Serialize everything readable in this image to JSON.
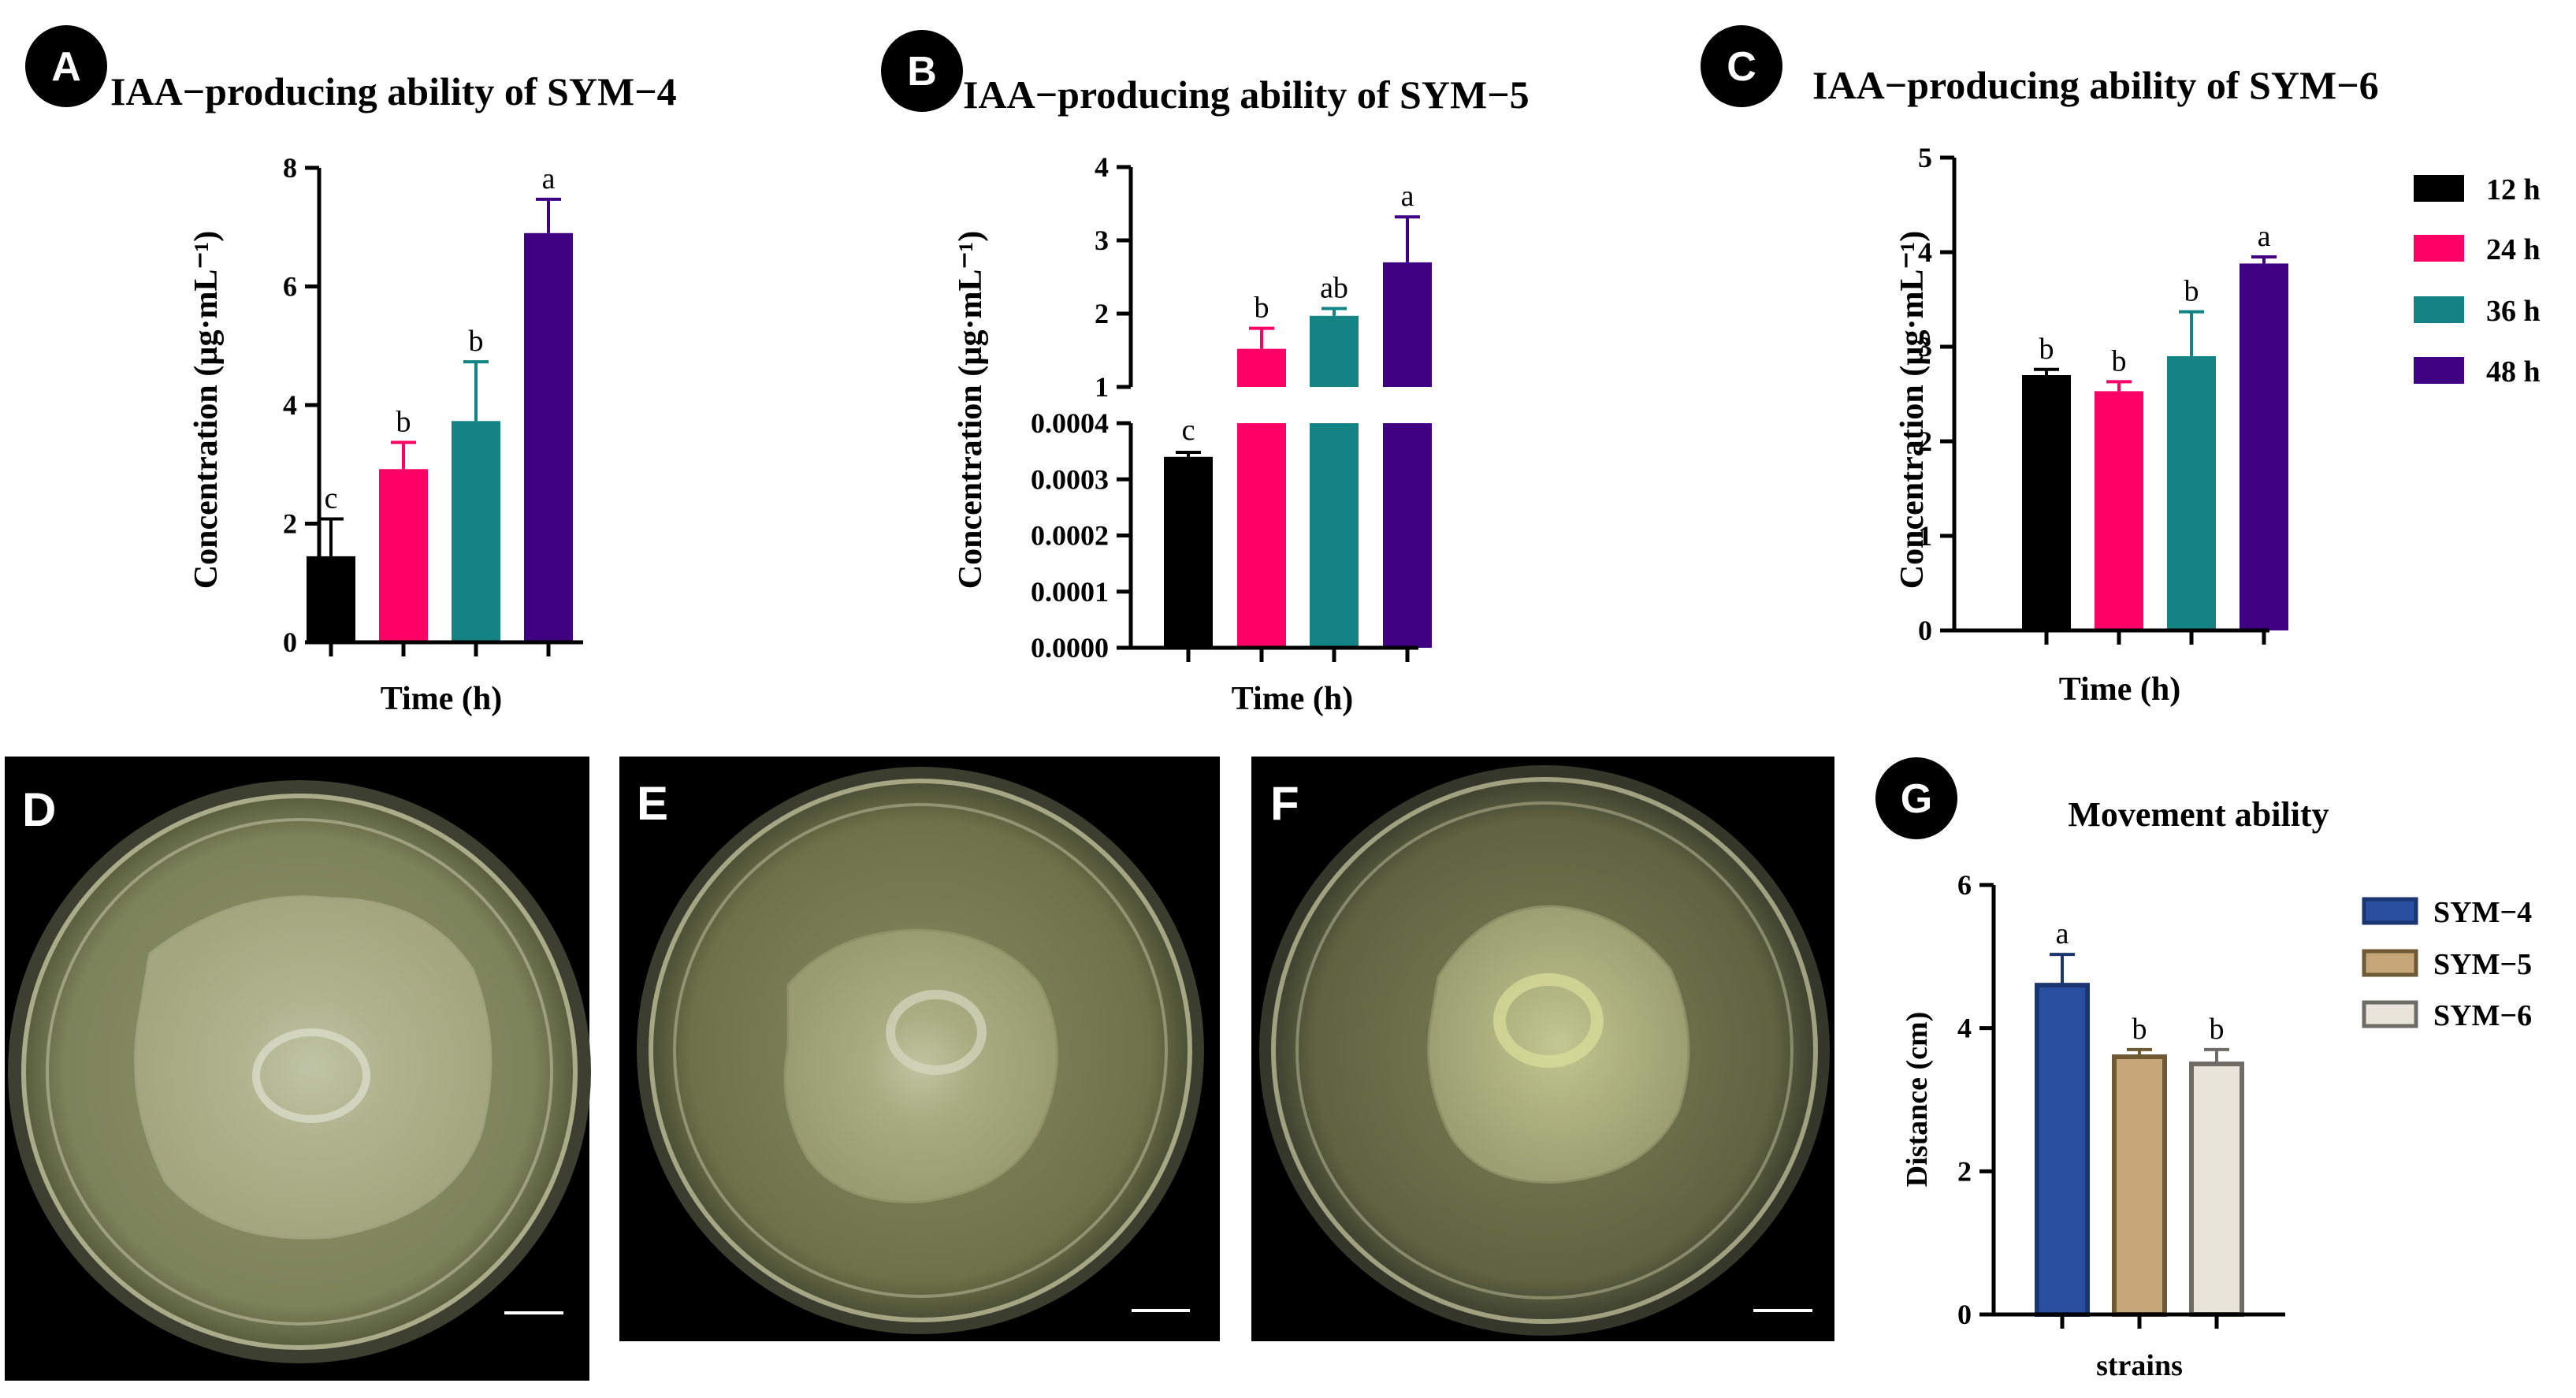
{
  "panel_labels": {
    "A": "A",
    "B": "B",
    "C": "C",
    "D": "D",
    "E": "E",
    "F": "F",
    "G": "G"
  },
  "colors": {
    "h12": "#000000",
    "h24": "#ff0066",
    "h36": "#138384",
    "h48": "#3f0082",
    "sym4": "#2950a0",
    "sym5": "#c4a679",
    "sym6": "#e8e4da"
  },
  "legend_time": [
    "12 h",
    "24 h",
    "36 h",
    "48 h"
  ],
  "legend_strain": [
    "SYM−4",
    "SYM−5",
    "SYM−6"
  ],
  "chart_data": [
    {
      "id": "A",
      "type": "bar",
      "title": "IAA−producing ability of SYM−4",
      "xlabel": "Time (h)",
      "ylabel": "Concentration (µg·mL⁻¹)",
      "ylim": [
        0,
        8
      ],
      "yticks": [
        "0",
        "2",
        "4",
        "6",
        "8"
      ],
      "categories": [
        "12 h",
        "24 h",
        "36 h",
        "48 h"
      ],
      "values": [
        1.45,
        2.92,
        3.73,
        6.9
      ],
      "errors": [
        0.63,
        0.45,
        1.0,
        0.57
      ],
      "letters": [
        "c",
        "b",
        "b",
        "a"
      ]
    },
    {
      "id": "B",
      "type": "bar",
      "title": "IAA−producing ability of  SYM−5",
      "xlabel": "Time (h)",
      "ylabel": "Concentration (µg·mL⁻¹)",
      "ylim_lower": [
        0,
        0.0004
      ],
      "yticks_lower": [
        "0.0000",
        "0.0001",
        "0.0002",
        "0.0003",
        "0.0004"
      ],
      "ylim_upper": [
        1,
        4
      ],
      "yticks_upper": [
        "1",
        "2",
        "3",
        "4"
      ],
      "categories": [
        "12 h",
        "24 h",
        "36 h",
        "48 h"
      ],
      "values": [
        0.00034,
        1.52,
        1.97,
        2.7
      ],
      "errors": [
        8e-06,
        0.28,
        0.1,
        0.62
      ],
      "letters": [
        "c",
        "b",
        "ab",
        "a"
      ]
    },
    {
      "id": "C",
      "type": "bar",
      "title": "IAA−producing ability of  SYM−6",
      "xlabel": "Time (h)",
      "ylabel": "Concentration (µg·mL⁻¹)",
      "ylim": [
        0,
        5
      ],
      "yticks": [
        "0",
        "1",
        "2",
        "3",
        "4",
        "5"
      ],
      "categories": [
        "12 h",
        "24 h",
        "36 h",
        "48 h"
      ],
      "values": [
        2.7,
        2.53,
        2.9,
        3.88
      ],
      "errors": [
        0.06,
        0.1,
        0.47,
        0.07
      ],
      "letters": [
        "b",
        "b",
        "b",
        "a"
      ]
    },
    {
      "id": "G",
      "type": "bar",
      "title": "Movement ability",
      "xlabel": "strains",
      "ylabel": "Distance (cm)",
      "ylim": [
        0,
        6
      ],
      "yticks": [
        "0",
        "2",
        "4",
        "6"
      ],
      "categories": [
        "SYM−4",
        "SYM−5",
        "SYM−6"
      ],
      "values": [
        4.6,
        3.6,
        3.5
      ],
      "errors": [
        0.43,
        0.1,
        0.2
      ],
      "letters": [
        "a",
        "b",
        "b"
      ]
    }
  ]
}
